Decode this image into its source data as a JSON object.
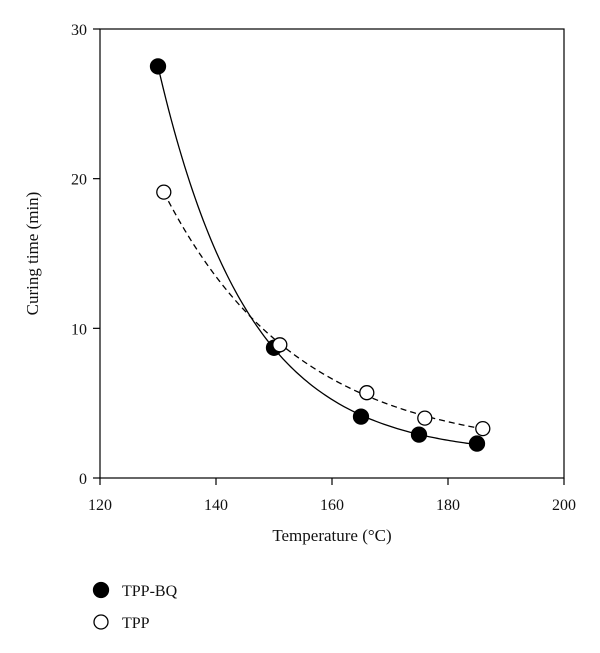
{
  "chart_data": {
    "type": "scatter",
    "title": "",
    "xlabel": "Temperature (°C)",
    "ylabel": "Curing time (min)",
    "xlim": [
      120,
      200
    ],
    "ylim": [
      0,
      30
    ],
    "xticks": [
      120,
      140,
      160,
      180,
      200
    ],
    "yticks": [
      0,
      10,
      20,
      30
    ],
    "grid": false,
    "legend_position": "bottom-left",
    "series": [
      {
        "name": "TPP-BQ",
        "marker": "filled-circle",
        "line": "solid",
        "x": [
          130,
          150,
          165,
          175,
          185
        ],
        "y": [
          27.5,
          8.7,
          4.1,
          2.9,
          2.3
        ]
      },
      {
        "name": "TPP",
        "marker": "open-circle",
        "line": "dashed",
        "x": [
          131,
          151,
          166,
          176,
          186
        ],
        "y": [
          19.1,
          8.9,
          5.7,
          4.0,
          3.3
        ]
      }
    ]
  },
  "colors": {
    "axis": "#000000",
    "marker_fill": "#000000",
    "background": "#ffffff"
  }
}
